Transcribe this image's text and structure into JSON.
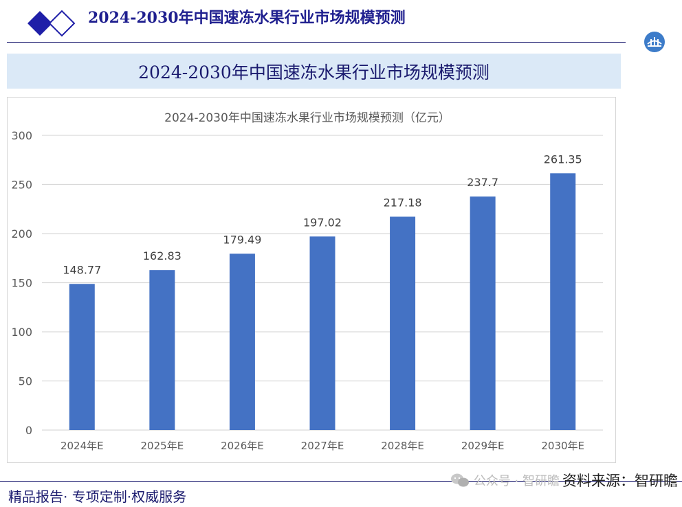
{
  "header": {
    "title": "2024-2030年中国速冻水果行业市场规模预测"
  },
  "banner": {
    "title": "2024-2030年中国速冻水果行业市场规模预测"
  },
  "colors": {
    "bar": "#4472c4",
    "navy": "#1a1a6e",
    "banner_bg": "#dbe9f7",
    "diamond": "#1f1fa8"
  },
  "chart_data": {
    "type": "bar",
    "title": "2024-2030年中国速冻水果行业市场规模预测（亿元）",
    "categories": [
      "2024年E",
      "2025年E",
      "2026年E",
      "2027年E",
      "2028年E",
      "2029年E",
      "2030年E"
    ],
    "values": [
      148.77,
      162.83,
      179.49,
      197.02,
      217.18,
      237.7,
      261.35
    ],
    "value_labels": [
      "148.77",
      "162.83",
      "179.49",
      "197.02",
      "217.18",
      "237.7",
      "261.35"
    ],
    "ylim": [
      0,
      300
    ],
    "yticks": [
      0,
      50,
      100,
      150,
      200,
      250,
      300
    ],
    "grid": true,
    "legend": "none"
  },
  "footer": {
    "slogan": "精品报告· 专项定制·权威服务",
    "source_label": "资料来源：智研瞻",
    "watermark": "公众号 · 智研瞻"
  }
}
